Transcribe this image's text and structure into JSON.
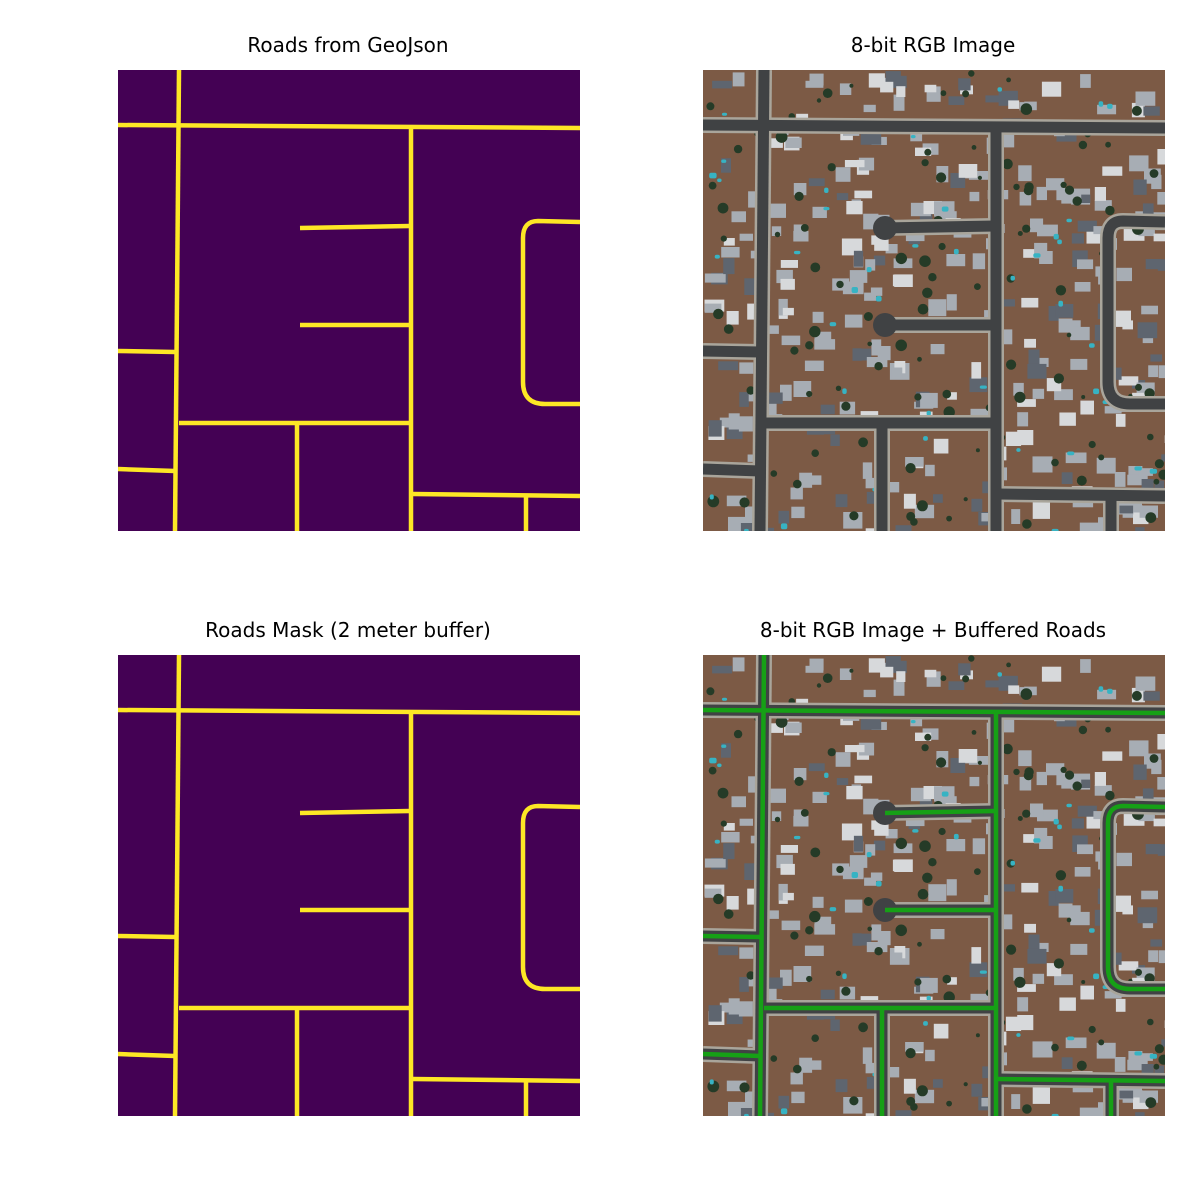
{
  "figure": {
    "panels": [
      {
        "title": "Roads from GeoJson",
        "kind": "road-vector-mask"
      },
      {
        "title": "8-bit RGB Image",
        "kind": "satellite-image"
      },
      {
        "title": "Roads Mask (2 meter buffer)",
        "kind": "road-buffered-mask"
      },
      {
        "title": "8-bit RGB Image + Buffered Roads",
        "kind": "satellite-image-with-road-overlay"
      }
    ]
  },
  "colors": {
    "mask_background": "#440154",
    "mask_road": "#fde725",
    "overlay_road": "#16a016",
    "street": "#404244",
    "sidewalk": "#a9a59b",
    "lot": "#7c5a45",
    "roof_light": "#a7adb4",
    "roof_dark": "#5e656f",
    "pool": "#37b3c3",
    "tree": "#253b27"
  }
}
